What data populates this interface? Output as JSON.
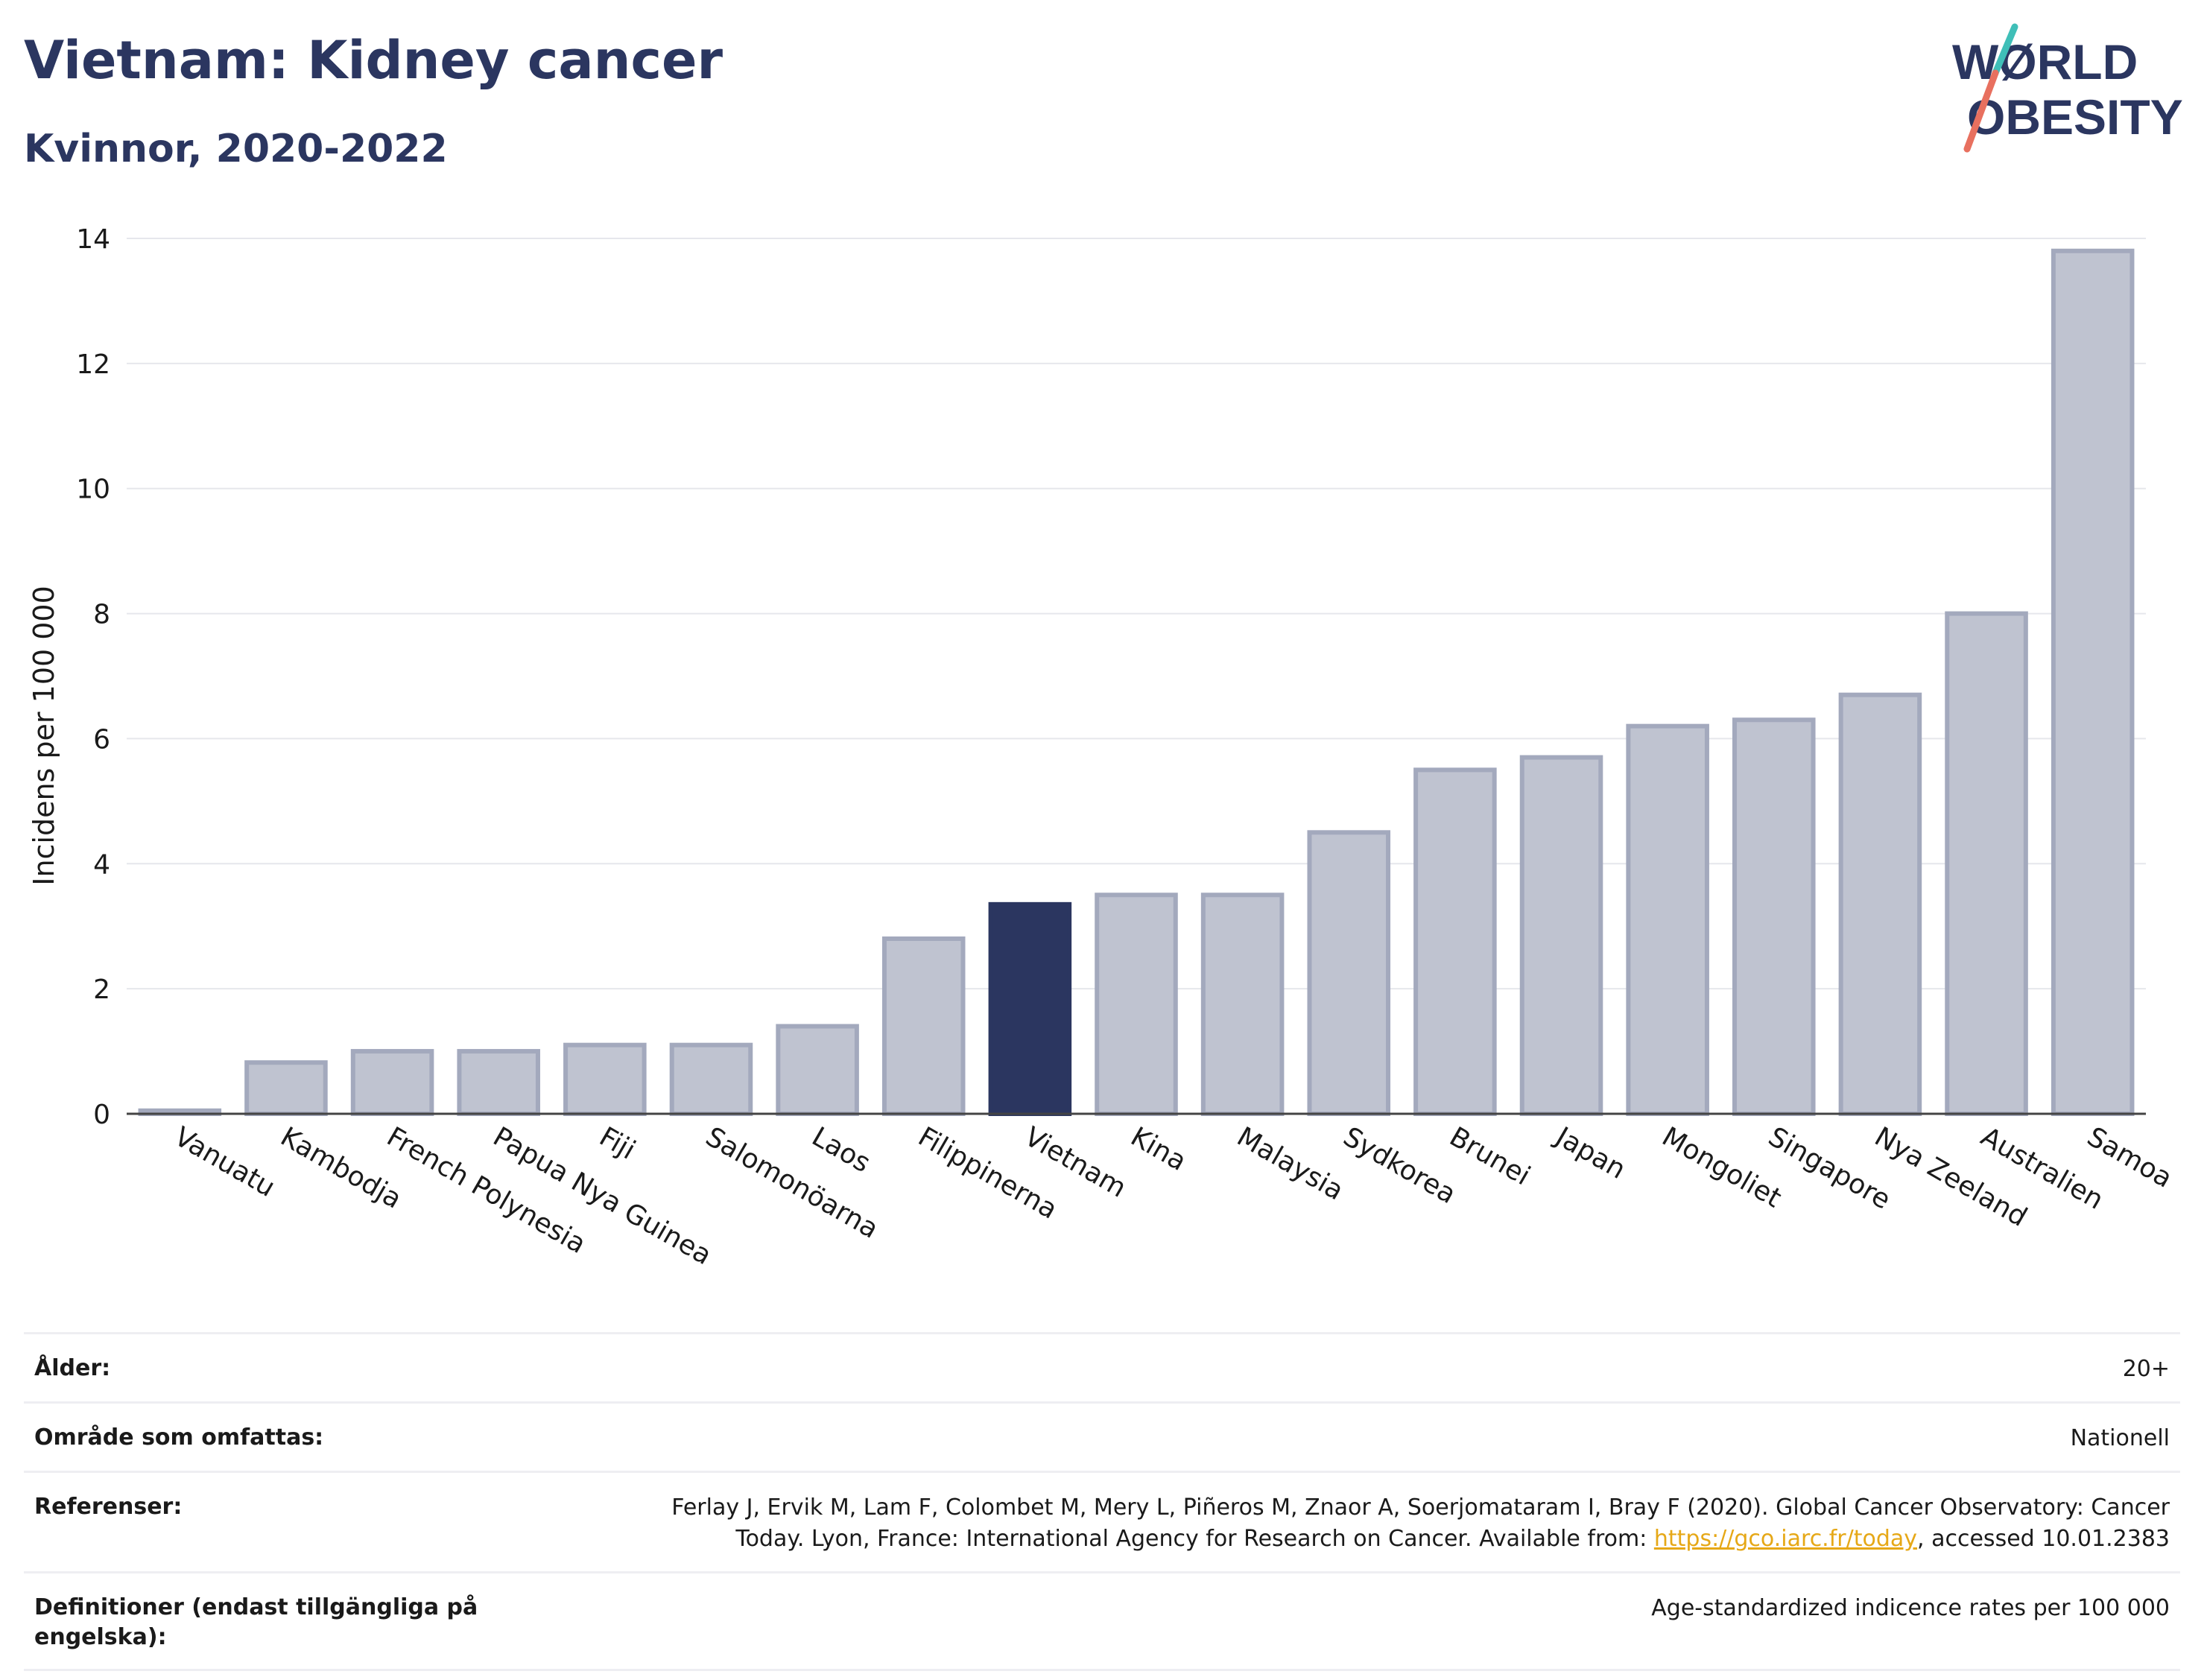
{
  "header": {
    "title": "Vietnam: Kidney cancer",
    "subtitle": "Kvinnor, 2020-2022"
  },
  "logo": {
    "line1": "WØRLD",
    "line2": "OBESITY",
    "text_color": "#2b3660",
    "slash_top_color": "#3fbfb8",
    "slash_bottom_color": "#e8705f"
  },
  "chart_data": {
    "type": "bar",
    "categories": [
      "Vanuatu",
      "Kambodja",
      "French Polynesia",
      "Papua Nya Guinea",
      "Fiji",
      "Salomonöarna",
      "Laos",
      "Filippinerna",
      "Vietnam",
      "Kina",
      "Malaysia",
      "Sydkorea",
      "Brunei",
      "Japan",
      "Mongoliet",
      "Singapore",
      "Nya Zeeland",
      "Australien",
      "Samoa"
    ],
    "values": [
      0.05,
      0.82,
      1.0,
      1.0,
      1.1,
      1.1,
      1.4,
      2.8,
      3.35,
      3.5,
      3.5,
      4.5,
      5.5,
      5.7,
      6.2,
      6.3,
      6.7,
      8.0,
      13.8
    ],
    "highlight": "Vietnam",
    "ylabel": "Incidens per 100 000",
    "xlabel": "",
    "ylim": [
      0,
      14
    ],
    "yticks": [
      0,
      2,
      4,
      6,
      8,
      10,
      12,
      14
    ],
    "grid": true,
    "bar_color": "#bfc3d0",
    "bar_edge_color": "#a3a9bd",
    "highlight_color": "#2b3660"
  },
  "info_table": [
    {
      "label": "Ålder:",
      "value": "20+"
    },
    {
      "label": "Område som omfattas:",
      "value": "Nationell"
    },
    {
      "label": "Referenser:",
      "value_line1": "Ferlay J, Ervik M, Lam F, Colombet M, Mery L, Piñeros M, Znaor A, Soerjomataram I, Bray F (2020). Global Cancer Observatory: Cancer",
      "value_line2_pre": "Today. Lyon, France: International Agency for Research on Cancer. Available from: ",
      "link": "https://gco.iarc.fr/today",
      "value_line2_post": ", accessed 10.01.2383"
    },
    {
      "label": "Definitioner (endast tillgängliga på engelska):",
      "value": "Age-standardized indicence rates per 100 000"
    }
  ]
}
